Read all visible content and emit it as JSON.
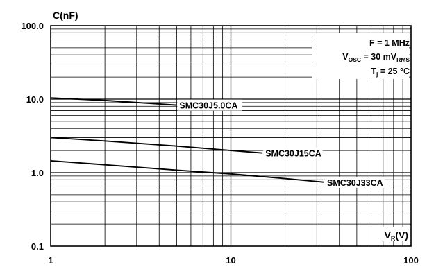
{
  "chart_data": {
    "type": "line",
    "xscale": "log",
    "yscale": "log",
    "xlim": [
      1,
      100
    ],
    "ylim": [
      0.1,
      100
    ],
    "xticks": [
      "1",
      "10",
      "100"
    ],
    "yticks": [
      "100.0",
      "10.0",
      "1.0",
      "0.1"
    ],
    "ylabel": "C(nF)",
    "xlabel": {
      "main": "V",
      "sub": "R",
      "unit": "(V)"
    },
    "grid": true,
    "conditions": {
      "line1": "F = 1 MHz",
      "line2": {
        "pre": "V",
        "sub1": "OSC",
        "mid": " = 30 mV",
        "sub2": "RMS"
      },
      "line3": {
        "pre": "T",
        "sub": "j",
        "post": " = 25 °C"
      }
    },
    "series": [
      {
        "name": "SMC30J5.0CA",
        "x": [
          1,
          2,
          5
        ],
        "y": [
          10.4,
          9.6,
          8.3
        ]
      },
      {
        "name": "SMC30J15CA",
        "x": [
          1,
          2,
          5,
          10,
          15
        ],
        "y": [
          3.0,
          2.7,
          2.3,
          2.0,
          1.85
        ]
      },
      {
        "name": "SMC30J33CA",
        "x": [
          1,
          2,
          5,
          10,
          20,
          33
        ],
        "y": [
          1.45,
          1.28,
          1.08,
          0.96,
          0.83,
          0.74
        ]
      }
    ]
  }
}
